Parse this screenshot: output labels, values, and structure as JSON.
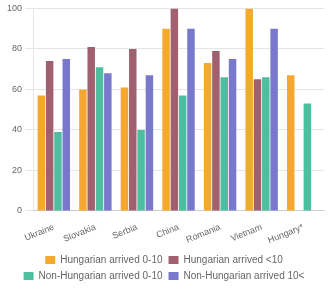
{
  "chart_data": {
    "type": "bar",
    "categories": [
      "Ukraine",
      "Slovakia",
      "Serbia",
      "China",
      "Romania",
      "Vietnam",
      "Hungary*"
    ],
    "series": [
      {
        "name": "Hungarian arrived 0-10",
        "color": "#F5A830",
        "values": [
          57,
          60,
          61,
          90,
          73,
          100,
          67
        ]
      },
      {
        "name": "Hungarian arrived <10",
        "color": "#A06070",
        "values": [
          74,
          81,
          80,
          100,
          79,
          65,
          null
        ]
      },
      {
        "name": "Non-Hungarian arrived 0-10",
        "color": "#4DBFA0",
        "values": [
          39,
          71,
          40,
          57,
          66,
          66,
          53
        ]
      },
      {
        "name": "Non-Hungarian arrived 10<",
        "color": "#7878CC",
        "values": [
          75,
          68,
          67,
          90,
          75,
          90,
          null
        ]
      }
    ],
    "ylim": [
      0,
      100
    ],
    "yticks": [
      0,
      20,
      40,
      60,
      80,
      100
    ],
    "grid": true,
    "legend": "bottom"
  }
}
